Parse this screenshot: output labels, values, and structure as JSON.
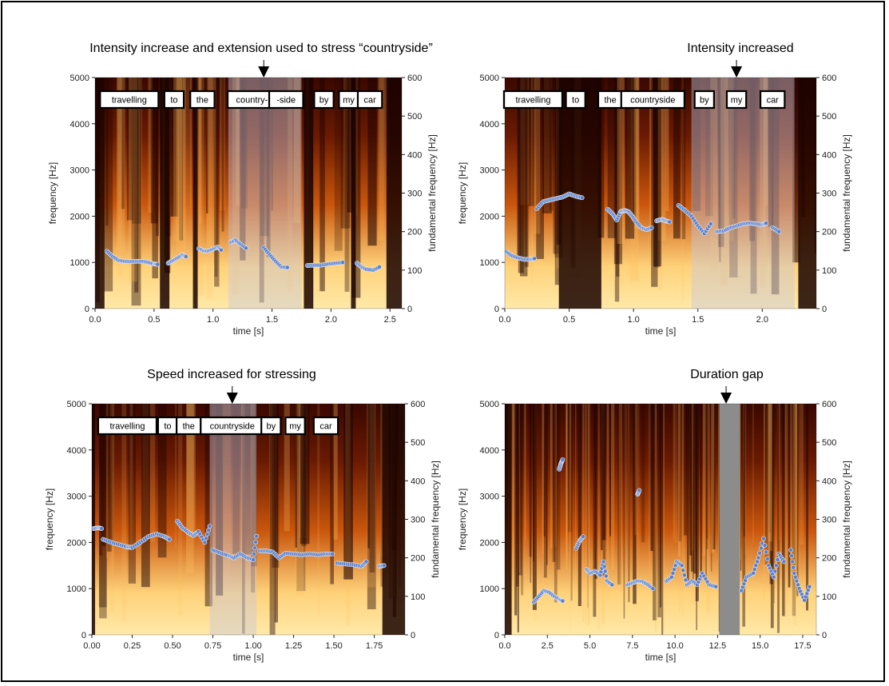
{
  "chart_data": [
    {
      "type": "scatter",
      "title": "Intensity increase and extension used to stress “countryside”",
      "xlabel": "time [s]",
      "ylabel": "frequency [Hz]",
      "y2label": "fundamental frequency [Hz]",
      "xlim": [
        0,
        2.6
      ],
      "ylim": [
        0,
        5000
      ],
      "y2lim": [
        0,
        600
      ],
      "xticks": [
        "0.0",
        "0.5",
        "1.0",
        "1.5",
        "2.0",
        "2.5"
      ],
      "yticks": [
        "0",
        "1000",
        "2000",
        "3000",
        "4000",
        "5000"
      ],
      "y2ticks": [
        "0",
        "100",
        "200",
        "300",
        "400",
        "500",
        "600"
      ],
      "marker_time": 1.43,
      "highlight": [
        1.13,
        1.75
      ],
      "dark_bands": [
        [
          0,
          0.08
        ],
        [
          0.55,
          0.63
        ],
        [
          0.83,
          0.87
        ],
        [
          1.77,
          1.85
        ],
        [
          2.17,
          2.21
        ],
        [
          2.47,
          2.6
        ]
      ],
      "words": [
        {
          "label": "travelling",
          "t": 0.29
        },
        {
          "label": "to",
          "t": 0.67
        },
        {
          "label": "the",
          "t": 0.91
        },
        {
          "label": "country-",
          "t": 1.33
        },
        {
          "label": "-side",
          "t": 1.62
        },
        {
          "label": "by",
          "t": 1.94
        },
        {
          "label": "my",
          "t": 2.15
        },
        {
          "label": "car",
          "t": 2.33
        }
      ],
      "f0_segments": [
        [
          [
            0.1,
            149
          ],
          [
            0.15,
            135
          ],
          [
            0.2,
            125
          ],
          [
            0.25,
            123
          ],
          [
            0.3,
            122
          ],
          [
            0.35,
            123
          ],
          [
            0.4,
            123
          ],
          [
            0.45,
            120
          ],
          [
            0.5,
            116
          ],
          [
            0.53,
            115
          ]
        ],
        [
          [
            0.62,
            118
          ],
          [
            0.66,
            125
          ],
          [
            0.7,
            132
          ],
          [
            0.74,
            140
          ],
          [
            0.77,
            135
          ]
        ],
        [
          [
            0.88,
            156
          ],
          [
            0.92,
            150
          ],
          [
            0.96,
            150
          ],
          [
            1.0,
            155
          ],
          [
            1.04,
            160
          ],
          [
            1.07,
            152
          ]
        ],
        [
          [
            1.15,
            172
          ],
          [
            1.19,
            178
          ],
          [
            1.23,
            168
          ],
          [
            1.28,
            157
          ]
        ],
        [
          [
            1.43,
            158
          ],
          [
            1.48,
            140
          ],
          [
            1.53,
            123
          ],
          [
            1.58,
            108
          ],
          [
            1.63,
            107
          ]
        ],
        [
          [
            1.8,
            112
          ],
          [
            1.86,
            113
          ],
          [
            1.92,
            113
          ],
          [
            1.98,
            116
          ],
          [
            2.04,
            118
          ],
          [
            2.1,
            120
          ]
        ],
        [
          [
            2.22,
            118
          ],
          [
            2.26,
            108
          ],
          [
            2.3,
            102
          ],
          [
            2.36,
            100
          ],
          [
            2.41,
            108
          ]
        ]
      ],
      "series": [
        {
          "name": "",
          "values": []
        }
      ]
    },
    {
      "type": "scatter",
      "title": "Intensity increased",
      "xlabel": "time [s]",
      "ylabel": "frequency [Hz]",
      "y2label": "fundamental frequency [Hz]",
      "xlim": [
        0,
        2.42
      ],
      "ylim": [
        0,
        5000
      ],
      "y2lim": [
        0,
        600
      ],
      "xticks": [
        "0.0",
        "0.5",
        "1.0",
        "1.5",
        "2.0"
      ],
      "yticks": [
        "0",
        "1000",
        "2000",
        "3000",
        "4000",
        "5000"
      ],
      "y2ticks": [
        "0",
        "100",
        "200",
        "300",
        "400",
        "500",
        "600"
      ],
      "marker_time": 1.8,
      "highlight": [
        1.45,
        2.25
      ],
      "dark_bands": [
        [
          0.42,
          0.75
        ],
        [
          2.28,
          2.42
        ]
      ],
      "words": [
        {
          "label": "travelling",
          "t": 0.22
        },
        {
          "label": "to",
          "t": 0.55
        },
        {
          "label": "the",
          "t": 0.82
        },
        {
          "label": "countryside",
          "t": 1.15
        },
        {
          "label": "by",
          "t": 1.55
        },
        {
          "label": "my",
          "t": 1.8
        },
        {
          "label": "car",
          "t": 2.08
        }
      ],
      "f0_segments": [
        [
          [
            0.01,
            148
          ],
          [
            0.05,
            138
          ],
          [
            0.1,
            132
          ],
          [
            0.15,
            128
          ],
          [
            0.2,
            128
          ],
          [
            0.23,
            130
          ]
        ],
        [
          [
            0.25,
            260
          ],
          [
            0.3,
            278
          ],
          [
            0.35,
            282
          ],
          [
            0.4,
            286
          ],
          [
            0.45,
            290
          ],
          [
            0.5,
            298
          ],
          [
            0.55,
            292
          ],
          [
            0.6,
            288
          ]
        ],
        [
          [
            0.8,
            258
          ],
          [
            0.84,
            245
          ],
          [
            0.87,
            230
          ],
          [
            0.9,
            252
          ],
          [
            0.93,
            255
          ],
          [
            0.96,
            252
          ],
          [
            0.99,
            240
          ],
          [
            1.02,
            225
          ],
          [
            1.06,
            210
          ],
          [
            1.1,
            205
          ],
          [
            1.14,
            210
          ]
        ],
        [
          [
            1.18,
            228
          ],
          [
            1.22,
            232
          ],
          [
            1.25,
            228
          ],
          [
            1.28,
            225
          ]
        ],
        [
          [
            1.35,
            268
          ],
          [
            1.4,
            255
          ],
          [
            1.45,
            240
          ],
          [
            1.5,
            215
          ],
          [
            1.55,
            195
          ],
          [
            1.6,
            220
          ]
        ],
        [
          [
            1.65,
            200
          ],
          [
            1.7,
            202
          ],
          [
            1.75,
            210
          ],
          [
            1.8,
            215
          ],
          [
            1.85,
            220
          ],
          [
            1.9,
            222
          ],
          [
            1.95,
            220
          ],
          [
            2.0,
            218
          ],
          [
            2.03,
            222
          ]
        ],
        [
          [
            2.08,
            210
          ],
          [
            2.13,
            200
          ]
        ]
      ],
      "series": [
        {
          "name": "",
          "values": []
        }
      ]
    },
    {
      "type": "scatter",
      "title": "Speed increased for stressing",
      "xlabel": "time [s]",
      "ylabel": "frequency [Hz]",
      "y2label": "fundamental frequency [Hz]",
      "xlim": [
        0,
        1.94
      ],
      "ylim": [
        0,
        5000
      ],
      "y2lim": [
        0,
        600
      ],
      "xticks": [
        "0.00",
        "0.25",
        "0.50",
        "0.75",
        "1.00",
        "1.25",
        "1.50",
        "1.75"
      ],
      "yticks": [
        "0",
        "1000",
        "2000",
        "3000",
        "4000",
        "5000"
      ],
      "y2ticks": [
        "0",
        "100",
        "200",
        "300",
        "400",
        "500",
        "600"
      ],
      "marker_time": 0.87,
      "highlight": [
        0.73,
        1.02
      ],
      "dark_bands": [
        [
          0.0,
          0.02
        ],
        [
          1.8,
          1.94
        ]
      ],
      "words": [
        {
          "label": "travelling",
          "t": 0.22
        },
        {
          "label": "to",
          "t": 0.47
        },
        {
          "label": "the",
          "t": 0.6
        },
        {
          "label": "countryside",
          "t": 0.87
        },
        {
          "label": "by",
          "t": 1.11
        },
        {
          "label": "my",
          "t": 1.26
        },
        {
          "label": "car",
          "t": 1.45
        }
      ],
      "f0_segments": [
        [
          [
            0.01,
            276
          ],
          [
            0.04,
            278
          ],
          [
            0.06,
            276
          ]
        ],
        [
          [
            0.07,
            248
          ],
          [
            0.12,
            240
          ],
          [
            0.17,
            234
          ],
          [
            0.22,
            228
          ],
          [
            0.25,
            227
          ],
          [
            0.3,
            240
          ],
          [
            0.35,
            255
          ],
          [
            0.4,
            262
          ],
          [
            0.45,
            255
          ],
          [
            0.48,
            248
          ]
        ],
        [
          [
            0.53,
            295
          ],
          [
            0.56,
            278
          ],
          [
            0.6,
            265
          ],
          [
            0.63,
            258
          ],
          [
            0.66,
            268
          ],
          [
            0.7,
            240
          ],
          [
            0.73,
            282
          ]
        ],
        [
          [
            0.75,
            220
          ],
          [
            0.8,
            212
          ],
          [
            0.85,
            205
          ],
          [
            0.88,
            200
          ],
          [
            0.92,
            210
          ],
          [
            0.96,
            200
          ],
          [
            1.0,
            195
          ],
          [
            1.02,
            256
          ]
        ],
        [
          [
            1.04,
            218
          ],
          [
            1.08,
            218
          ],
          [
            1.12,
            215
          ],
          [
            1.16,
            200
          ],
          [
            1.2,
            212
          ],
          [
            1.25,
            210
          ],
          [
            1.3,
            208
          ],
          [
            1.35,
            210
          ],
          [
            1.4,
            208
          ],
          [
            1.45,
            210
          ],
          [
            1.49,
            210
          ]
        ],
        [
          [
            1.52,
            186
          ],
          [
            1.57,
            184
          ],
          [
            1.62,
            182
          ],
          [
            1.67,
            178
          ],
          [
            1.7,
            190
          ]
        ],
        [
          [
            1.78,
            178
          ],
          [
            1.81,
            180
          ]
        ]
      ],
      "series": [
        {
          "name": "",
          "values": []
        }
      ]
    },
    {
      "type": "scatter",
      "title": "Duration gap",
      "xlabel": "time [s]",
      "ylabel": "frequency [Hz]",
      "y2label": "fundamental frequency [Hz]",
      "xlim": [
        0,
        18.3
      ],
      "ylim": [
        0,
        5000
      ],
      "y2lim": [
        0,
        600
      ],
      "xticks": [
        "0.0",
        "2.5",
        "5.0",
        "7.5",
        "10.0",
        "12.5",
        "15.0",
        "17.5"
      ],
      "yticks": [
        "0",
        "1000",
        "2000",
        "3000",
        "4000",
        "5000"
      ],
      "y2ticks": [
        "0",
        "100",
        "200",
        "300",
        "400",
        "500",
        "600"
      ],
      "marker_time": 13.0,
      "gap": [
        12.6,
        13.8
      ],
      "dark_bands": [
        [
          0,
          0.4
        ]
      ],
      "words": [],
      "f0_segments": [
        [
          [
            1.7,
            85
          ],
          [
            2.0,
            100
          ],
          [
            2.3,
            115
          ],
          [
            2.6,
            110
          ],
          [
            2.9,
            100
          ],
          [
            3.2,
            92
          ],
          [
            3.4,
            88
          ]
        ],
        [
          [
            3.2,
            430
          ],
          [
            3.3,
            445
          ],
          [
            3.4,
            455
          ]
        ],
        [
          [
            4.2,
            225
          ],
          [
            4.4,
            245
          ],
          [
            4.6,
            255
          ]
        ],
        [
          [
            4.8,
            170
          ],
          [
            5.0,
            160
          ],
          [
            5.3,
            165
          ],
          [
            5.6,
            155
          ],
          [
            5.8,
            190
          ],
          [
            6.0,
            140
          ],
          [
            6.3,
            130
          ]
        ],
        [
          [
            7.2,
            130
          ],
          [
            7.5,
            135
          ],
          [
            7.8,
            140
          ],
          [
            8.1,
            138
          ],
          [
            8.4,
            130
          ],
          [
            8.7,
            120
          ]
        ],
        [
          [
            7.8,
            365
          ],
          [
            7.9,
            375
          ]
        ],
        [
          [
            9.5,
            140
          ],
          [
            9.8,
            150
          ],
          [
            10.1,
            190
          ],
          [
            10.4,
            180
          ],
          [
            10.7,
            130
          ],
          [
            11.0,
            140
          ],
          [
            11.3,
            130
          ],
          [
            11.6,
            160
          ],
          [
            12.0,
            130
          ],
          [
            12.4,
            125
          ]
        ],
        [
          [
            13.9,
            115
          ],
          [
            14.2,
            150
          ],
          [
            14.6,
            160
          ],
          [
            14.9,
            200
          ],
          [
            15.2,
            250
          ],
          [
            15.5,
            180
          ],
          [
            15.8,
            150
          ],
          [
            16.1,
            210
          ],
          [
            16.4,
            190
          ]
        ],
        [
          [
            16.8,
            220
          ],
          [
            17.0,
            160
          ],
          [
            17.3,
            120
          ],
          [
            17.6,
            90
          ],
          [
            17.9,
            125
          ]
        ]
      ],
      "series": [
        {
          "name": "",
          "values": []
        }
      ]
    }
  ],
  "colors": {
    "f0_points": "#5b7fc8",
    "spectro_dark": "#1a0200",
    "spectro_mid": "#c9560c",
    "spectro_bright": "#ffe9a8",
    "highlight": "#c8c8dc",
    "gap": "#8c8c8c"
  }
}
